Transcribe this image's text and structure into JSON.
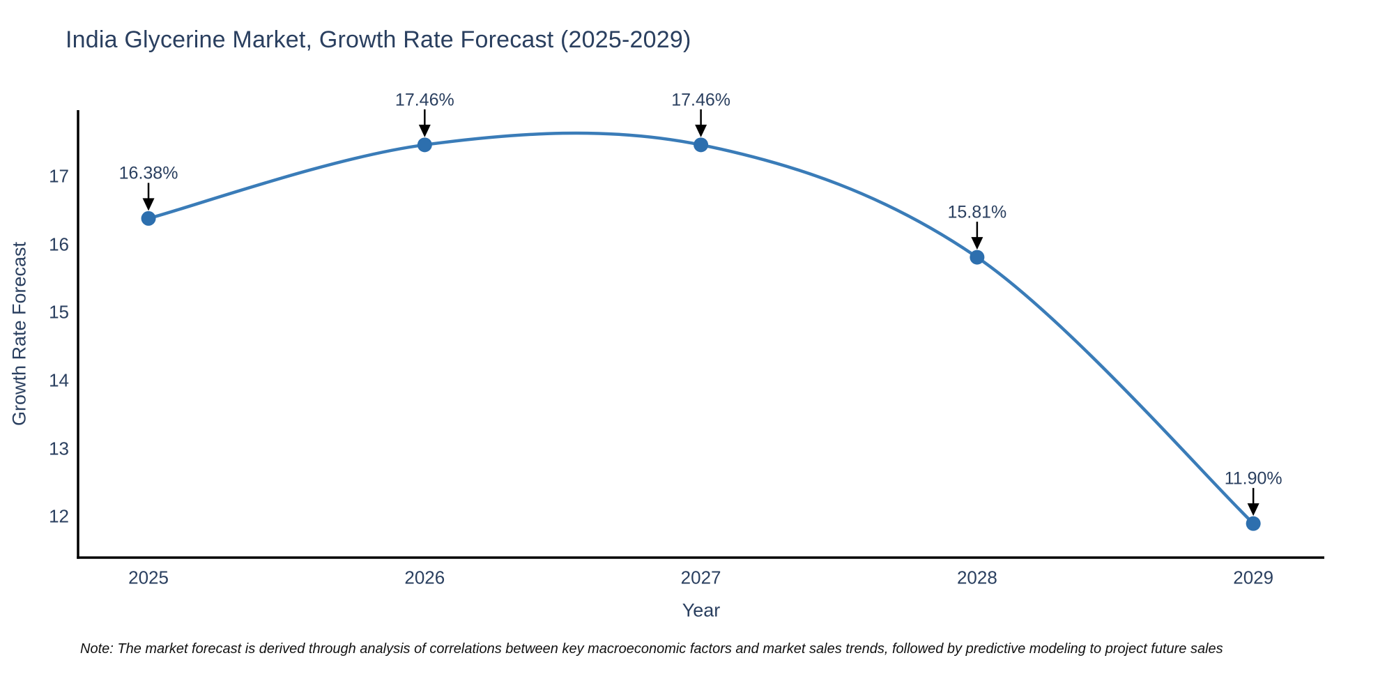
{
  "chart_data": {
    "type": "line",
    "title": "India Glycerine Market, Growth Rate Forecast (2025-2029)",
    "xlabel": "Year",
    "ylabel": "Growth Rate Forecast",
    "x": [
      2025,
      2026,
      2027,
      2028,
      2029
    ],
    "series": [
      {
        "name": "Growth Rate Forecast",
        "values": [
          16.38,
          17.46,
          17.46,
          15.81,
          11.9
        ]
      }
    ],
    "point_labels": [
      "16.38%",
      "17.46%",
      "17.46%",
      "15.81%",
      "11.90%"
    ],
    "xticks": [
      "2025",
      "2026",
      "2027",
      "2028",
      "2029"
    ],
    "yticks": [
      17,
      16,
      15,
      14,
      13,
      12
    ],
    "xlim": [
      2024.745,
      2029.257
    ],
    "ylim": [
      11.4,
      17.97
    ],
    "line_smoothing": "spline",
    "grid": false,
    "legend": "none",
    "note": "Note: The market forecast is derived through analysis of correlations between key macroeconomic factors and market sales trends, followed by predictive modeling to project future sales",
    "colors": {
      "line": "#3a7cb8",
      "marker": "#2d6fae",
      "axis_line": "#000000",
      "text": "#2a3f5f",
      "annotation_arrow": "#000000",
      "note_text": "#111111",
      "background": "#ffffff"
    }
  }
}
